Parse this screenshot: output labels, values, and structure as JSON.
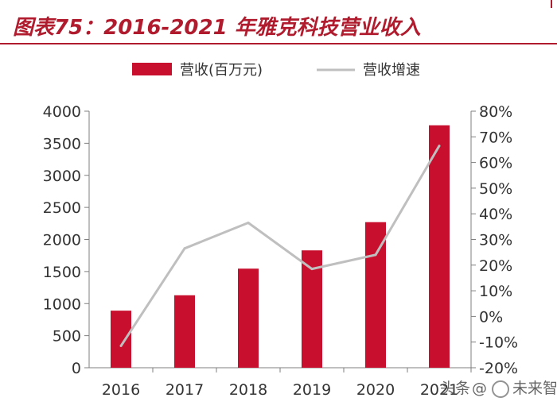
{
  "title": "图表75：2016-2021 年雅克科技营业收入",
  "watermark": {
    "source": "头条",
    "at": "@",
    "name": "未来智库"
  },
  "colors": {
    "accent": "#b01c2e",
    "bar": "#c8102e",
    "line": "#bfbfbf",
    "axis": "#7f7f7f",
    "text": "#333333"
  },
  "chart_data": {
    "type": "bar+line",
    "categories": [
      "2016",
      "2017",
      "2018",
      "2019",
      "2020",
      "2021"
    ],
    "series": [
      {
        "name": "营收(百万元)",
        "type": "bar",
        "axis": "left",
        "values": [
          890,
          1130,
          1545,
          1830,
          2270,
          3780
        ]
      },
      {
        "name": "营收增速",
        "type": "line",
        "axis": "right",
        "values": [
          -11.5,
          26.5,
          36.5,
          18.5,
          24,
          66.5
        ]
      }
    ],
    "y_left": {
      "min": 0,
      "max": 4000,
      "step": 500,
      "ticks": [
        "0",
        "500",
        "1000",
        "1500",
        "2000",
        "2500",
        "3000",
        "3500",
        "4000"
      ]
    },
    "y_right": {
      "min": -20,
      "max": 80,
      "step": 10,
      "ticks": [
        "-20%",
        "-10%",
        "0%",
        "10%",
        "20%",
        "30%",
        "40%",
        "50%",
        "60%",
        "70%",
        "80%"
      ]
    },
    "legend_position": "top-center",
    "grid": false
  }
}
